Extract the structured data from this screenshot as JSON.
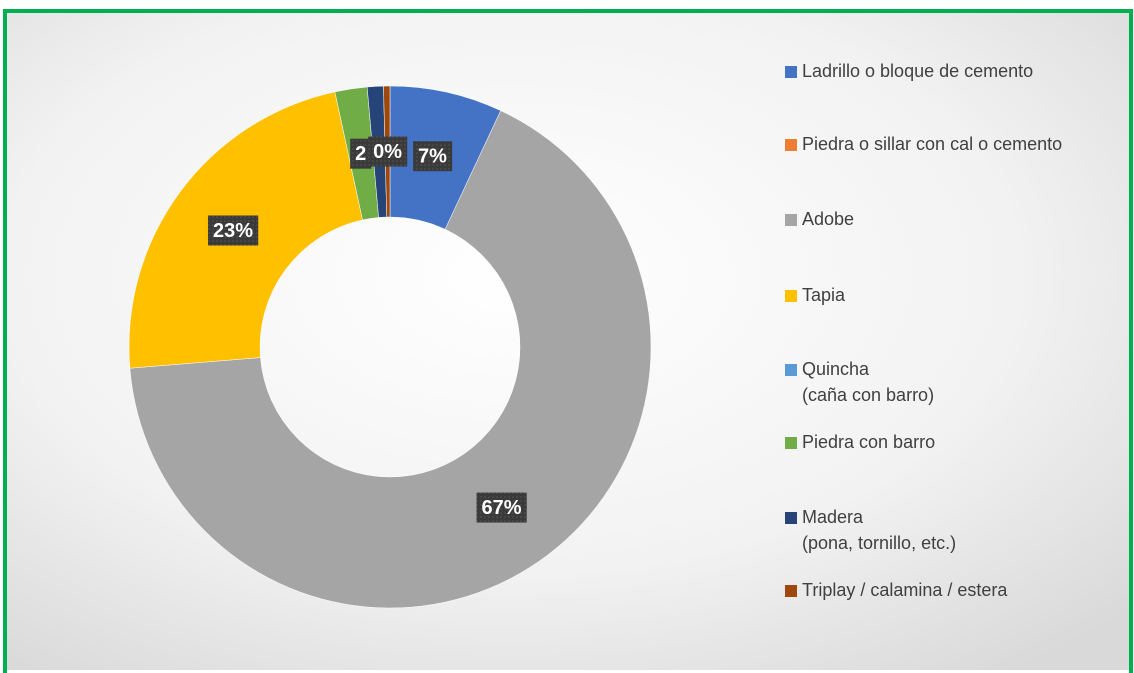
{
  "chart_data": {
    "type": "donut",
    "categories": [
      "Ladrillo o bloque de cemento",
      "Piedra o sillar con cal o cemento",
      "Adobe",
      "Tapia",
      "Quincha (caña con barro)",
      "Piedra con barro",
      "Madera (pona, tornillo, etc.)",
      "Triplay / calamina / estera"
    ],
    "values": [
      7,
      0,
      67,
      23,
      0,
      2,
      1,
      0.4
    ],
    "value_labels": [
      "7%",
      null,
      "67%",
      "23%",
      null,
      "2",
      null,
      "0%"
    ],
    "colors": [
      "#4472c4",
      "#ed7d31",
      "#a5a5a5",
      "#ffc000",
      "#5b9bd5",
      "#70ad47",
      "#264478",
      "#9e480e"
    ],
    "legend": "right"
  }
}
